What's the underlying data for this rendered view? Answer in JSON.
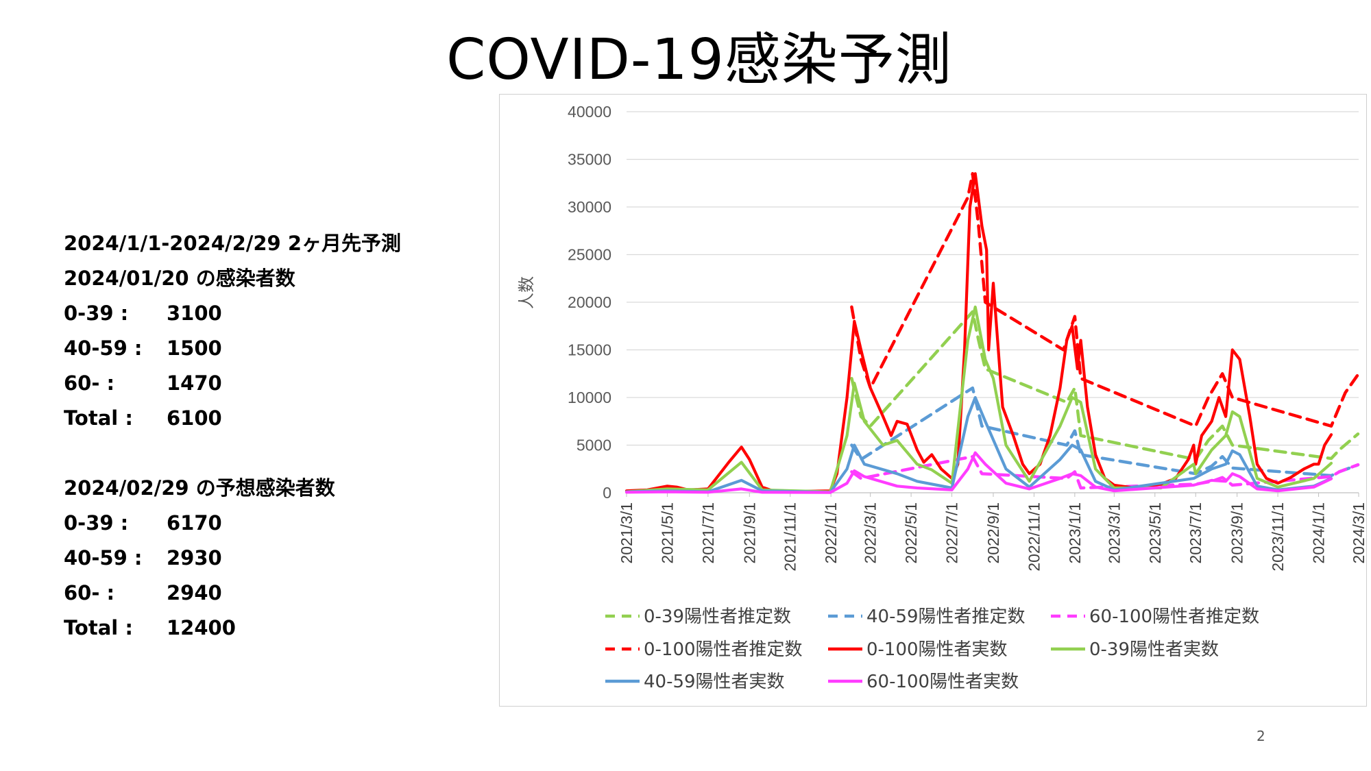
{
  "slide": {
    "title": "COVID-19感染予測",
    "page_number": "2"
  },
  "info": {
    "line1": "2024/1/1-2024/2/29 2ヶ月先予測",
    "line2": "2024/01/20 の感染者数",
    "current": [
      {
        "label": "0-39 :",
        "value": "3100"
      },
      {
        "label": "40-59 :",
        "value": "1500"
      },
      {
        "label": "60- :",
        "value": "1470"
      },
      {
        "label": "Total :",
        "value": "6100"
      }
    ],
    "line3": "2024/02/29 の予想感染者数",
    "forecast": [
      {
        "label": "0-39 :",
        "value": "6170"
      },
      {
        "label": "40-59 :",
        "value": "2930"
      },
      {
        "label": "60- :",
        "value": "2940"
      },
      {
        "label": "Total :",
        "value": "12400"
      }
    ]
  },
  "chart_data": {
    "type": "line",
    "title": "",
    "xlabel": "",
    "ylabel": "人数",
    "ylim": [
      0,
      40000
    ],
    "yticks": [
      0,
      5000,
      10000,
      15000,
      20000,
      25000,
      30000,
      35000,
      40000
    ],
    "xlim": [
      "2021/3/1",
      "2024/3/1"
    ],
    "xticks": [
      "2021/3/1",
      "2021/5/1",
      "2021/7/1",
      "2021/9/1",
      "2021/11/1",
      "2022/1/1",
      "2022/3/1",
      "2022/5/1",
      "2022/7/1",
      "2022/9/1",
      "2022/11/1",
      "2023/1/1",
      "2023/3/1",
      "2023/5/1",
      "2023/7/1",
      "2023/9/1",
      "2023/11/1",
      "2024/1/1",
      "2024/3/1"
    ],
    "grid": "horizontal",
    "legend_position": "bottom",
    "series": [
      {
        "name": "0-39陽性者推定数",
        "color": "#92D050",
        "dash": true,
        "points": [
          [
            "2022/2/1",
            12000
          ],
          [
            "2022/2/15",
            8000
          ],
          [
            "2022/3/1",
            7000
          ],
          [
            "2022/8/1",
            19000
          ],
          [
            "2022/8/10",
            16000
          ],
          [
            "2022/8/20",
            13000
          ],
          [
            "2022/12/20",
            9500
          ],
          [
            "2023/1/1",
            11000
          ],
          [
            "2023/1/10",
            6000
          ],
          [
            "2023/7/1",
            3500
          ],
          [
            "2023/7/20",
            5500
          ],
          [
            "2023/8/10",
            7000
          ],
          [
            "2023/8/25",
            5000
          ],
          [
            "2024/1/20",
            3600
          ],
          [
            "2024/2/1",
            4500
          ],
          [
            "2024/2/29",
            6170
          ]
        ]
      },
      {
        "name": "40-59陽性者推定数",
        "color": "#5B9BD5",
        "dash": true,
        "points": [
          [
            "2022/2/1",
            5000
          ],
          [
            "2022/2/15",
            3500
          ],
          [
            "2022/8/1",
            11000
          ],
          [
            "2022/8/15",
            7000
          ],
          [
            "2022/12/20",
            5000
          ],
          [
            "2023/1/1",
            6500
          ],
          [
            "2023/1/10",
            4000
          ],
          [
            "2023/7/1",
            2000
          ],
          [
            "2023/7/25",
            2800
          ],
          [
            "2023/8/10",
            3800
          ],
          [
            "2023/8/25",
            2600
          ],
          [
            "2024/1/20",
            1800
          ],
          [
            "2024/2/1",
            2200
          ],
          [
            "2024/2/29",
            2930
          ]
        ]
      },
      {
        "name": "60-100陽性者推定数",
        "color": "#FF3CFF",
        "dash": true,
        "points": [
          [
            "2022/2/1",
            2200
          ],
          [
            "2022/2/15",
            1500
          ],
          [
            "2022/8/1",
            3800
          ],
          [
            "2022/8/15",
            2000
          ],
          [
            "2022/12/20",
            1500
          ],
          [
            "2023/1/1",
            2200
          ],
          [
            "2023/1/10",
            500
          ],
          [
            "2023/7/1",
            900
          ],
          [
            "2023/7/25",
            1200
          ],
          [
            "2023/8/10",
            1600
          ],
          [
            "2023/8/25",
            800
          ],
          [
            "2024/1/20",
            1700
          ],
          [
            "2024/2/1",
            2200
          ],
          [
            "2024/2/29",
            2940
          ]
        ]
      },
      {
        "name": "0-100陽性者推定数",
        "color": "#FF0000",
        "dash": true,
        "points": [
          [
            "2022/2/1",
            19500
          ],
          [
            "2022/2/15",
            14000
          ],
          [
            "2022/3/1",
            11000
          ],
          [
            "2022/7/25",
            31000
          ],
          [
            "2022/8/1",
            33500
          ],
          [
            "2022/8/10",
            28000
          ],
          [
            "2022/8/20",
            20000
          ],
          [
            "2022/12/15",
            15000
          ],
          [
            "2023/1/1",
            18500
          ],
          [
            "2023/1/10",
            12000
          ],
          [
            "2023/7/1",
            7000
          ],
          [
            "2023/7/20",
            10000
          ],
          [
            "2023/8/10",
            12500
          ],
          [
            "2023/8/25",
            10000
          ],
          [
            "2024/1/20",
            7000
          ],
          [
            "2024/2/10",
            10500
          ],
          [
            "2024/2/29",
            12400
          ]
        ]
      },
      {
        "name": "0-100陽性者実数",
        "color": "#FF0000",
        "dash": false,
        "points": [
          [
            "2021/3/1",
            200
          ],
          [
            "2021/4/1",
            300
          ],
          [
            "2021/5/1",
            700
          ],
          [
            "2021/5/15",
            600
          ],
          [
            "2021/6/1",
            300
          ],
          [
            "2021/7/1",
            400
          ],
          [
            "2021/8/1",
            3200
          ],
          [
            "2021/8/20",
            4800
          ],
          [
            "2021/9/1",
            3500
          ],
          [
            "2021/9/20",
            600
          ],
          [
            "2021/10/10",
            100
          ],
          [
            "2021/12/31",
            200
          ],
          [
            "2022/1/10",
            2000
          ],
          [
            "2022/1/25",
            10000
          ],
          [
            "2022/2/5",
            18000
          ],
          [
            "2022/2/15",
            15000
          ],
          [
            "2022/3/1",
            11000
          ],
          [
            "2022/3/20",
            8000
          ],
          [
            "2022/4/1",
            6000
          ],
          [
            "2022/4/10",
            7500
          ],
          [
            "2022/4/25",
            7200
          ],
          [
            "2022/5/10",
            4500
          ],
          [
            "2022/5/20",
            3200
          ],
          [
            "2022/6/1",
            4000
          ],
          [
            "2022/6/15",
            2500
          ],
          [
            "2022/7/1",
            1500
          ],
          [
            "2022/7/10",
            3000
          ],
          [
            "2022/7/20",
            15000
          ],
          [
            "2022/7/28",
            30000
          ],
          [
            "2022/8/5",
            33500
          ],
          [
            "2022/8/15",
            28000
          ],
          [
            "2022/8/22",
            25500
          ],
          [
            "2022/8/25",
            15000
          ],
          [
            "2022/9/1",
            22000
          ],
          [
            "2022/9/15",
            9000
          ],
          [
            "2022/10/1",
            6000
          ],
          [
            "2022/10/15",
            3000
          ],
          [
            "2022/10/25",
            2000
          ],
          [
            "2022/11/10",
            3000
          ],
          [
            "2022/11/25",
            6000
          ],
          [
            "2022/12/10",
            11000
          ],
          [
            "2022/12/20",
            16000
          ],
          [
            "2022/12/28",
            17500
          ],
          [
            "2023/1/5",
            13000
          ],
          [
            "2023/1/10",
            16000
          ],
          [
            "2023/1/20",
            9000
          ],
          [
            "2023/2/1",
            4000
          ],
          [
            "2023/2/15",
            1500
          ],
          [
            "2023/3/1",
            800
          ],
          [
            "2023/4/1",
            500
          ],
          [
            "2023/5/10",
            900
          ],
          [
            "2023/6/1",
            1500
          ],
          [
            "2023/6/20",
            3500
          ],
          [
            "2023/6/28",
            5000
          ],
          [
            "2023/7/1",
            3000
          ],
          [
            "2023/7/10",
            6000
          ],
          [
            "2023/7/25",
            7500
          ],
          [
            "2023/8/5",
            10000
          ],
          [
            "2023/8/15",
            8000
          ],
          [
            "2023/8/25",
            15000
          ],
          [
            "2023/9/5",
            14000
          ],
          [
            "2023/9/20",
            8000
          ],
          [
            "2023/10/1",
            3000
          ],
          [
            "2023/10/15",
            1500
          ],
          [
            "2023/11/1",
            1000
          ],
          [
            "2023/11/20",
            1600
          ],
          [
            "2023/12/10",
            2500
          ],
          [
            "2023/12/25",
            3000
          ],
          [
            "2024/1/1",
            3000
          ],
          [
            "2024/1/10",
            5000
          ],
          [
            "2024/1/20",
            6100
          ]
        ]
      },
      {
        "name": "0-39陽性者実数",
        "color": "#92D050",
        "dash": false,
        "points": [
          [
            "2021/3/1",
            100
          ],
          [
            "2021/5/1",
            400
          ],
          [
            "2021/7/1",
            300
          ],
          [
            "2021/8/20",
            3200
          ],
          [
            "2021/9/20",
            300
          ],
          [
            "2021/12/31",
            100
          ],
          [
            "2022/1/25",
            6000
          ],
          [
            "2022/2/5",
            11500
          ],
          [
            "2022/2/20",
            7500
          ],
          [
            "2022/3/20",
            5000
          ],
          [
            "2022/4/10",
            5500
          ],
          [
            "2022/5/10",
            3000
          ],
          [
            "2022/6/1",
            2400
          ],
          [
            "2022/7/1",
            1000
          ],
          [
            "2022/7/25",
            16000
          ],
          [
            "2022/8/5",
            19500
          ],
          [
            "2022/8/20",
            14000
          ],
          [
            "2022/9/1",
            12000
          ],
          [
            "2022/9/20",
            5000
          ],
          [
            "2022/10/25",
            1200
          ],
          [
            "2022/12/10",
            7000
          ],
          [
            "2022/12/28",
            10000
          ],
          [
            "2023/1/10",
            9500
          ],
          [
            "2023/2/1",
            2500
          ],
          [
            "2023/3/1",
            500
          ],
          [
            "2023/5/10",
            500
          ],
          [
            "2023/6/28",
            3000
          ],
          [
            "2023/7/1",
            2000
          ],
          [
            "2023/7/25",
            4500
          ],
          [
            "2023/8/15",
            6000
          ],
          [
            "2023/8/25",
            8500
          ],
          [
            "2023/9/5",
            8000
          ],
          [
            "2023/10/1",
            1500
          ],
          [
            "2023/11/1",
            600
          ],
          [
            "2023/12/25",
            1500
          ],
          [
            "2024/1/20",
            3100
          ]
        ]
      },
      {
        "name": "40-59陽性者実数",
        "color": "#5B9BD5",
        "dash": false,
        "points": [
          [
            "2021/3/1",
            100
          ],
          [
            "2021/5/1",
            200
          ],
          [
            "2021/7/1",
            100
          ],
          [
            "2021/8/20",
            1300
          ],
          [
            "2021/9/20",
            200
          ],
          [
            "2021/12/31",
            50
          ],
          [
            "2022/1/25",
            2500
          ],
          [
            "2022/2/5",
            5000
          ],
          [
            "2022/2/20",
            3000
          ],
          [
            "2022/4/10",
            2000
          ],
          [
            "2022/5/10",
            1200
          ],
          [
            "2022/7/1",
            500
          ],
          [
            "2022/7/25",
            8000
          ],
          [
            "2022/8/5",
            10000
          ],
          [
            "2022/8/20",
            7500
          ],
          [
            "2022/9/20",
            2500
          ],
          [
            "2022/10/25",
            600
          ],
          [
            "2022/12/10",
            3500
          ],
          [
            "2022/12/28",
            5000
          ],
          [
            "2023/1/10",
            4500
          ],
          [
            "2023/2/1",
            1200
          ],
          [
            "2023/3/1",
            300
          ],
          [
            "2023/6/28",
            1500
          ],
          [
            "2023/7/25",
            2500
          ],
          [
            "2023/8/15",
            3000
          ],
          [
            "2023/8/25",
            4400
          ],
          [
            "2023/9/5",
            4000
          ],
          [
            "2023/10/1",
            700
          ],
          [
            "2023/11/1",
            300
          ],
          [
            "2023/12/25",
            700
          ],
          [
            "2024/1/20",
            1500
          ]
        ]
      },
      {
        "name": "60-100陽性者実数",
        "color": "#FF3CFF",
        "dash": false,
        "points": [
          [
            "2021/3/1",
            50
          ],
          [
            "2021/5/1",
            100
          ],
          [
            "2021/7/1",
            50
          ],
          [
            "2021/8/20",
            400
          ],
          [
            "2021/9/20",
            50
          ],
          [
            "2021/12/31",
            30
          ],
          [
            "2022/1/25",
            1000
          ],
          [
            "2022/2/5",
            2300
          ],
          [
            "2022/2/20",
            1700
          ],
          [
            "2022/4/10",
            700
          ],
          [
            "2022/5/10",
            500
          ],
          [
            "2022/7/1",
            300
          ],
          [
            "2022/7/25",
            2500
          ],
          [
            "2022/8/5",
            4200
          ],
          [
            "2022/8/20",
            3000
          ],
          [
            "2022/9/20",
            1000
          ],
          [
            "2022/10/25",
            400
          ],
          [
            "2022/12/10",
            1500
          ],
          [
            "2022/12/28",
            2000
          ],
          [
            "2023/1/10",
            1800
          ],
          [
            "2023/2/1",
            600
          ],
          [
            "2023/3/1",
            200
          ],
          [
            "2023/6/28",
            800
          ],
          [
            "2023/7/25",
            1300
          ],
          [
            "2023/8/15",
            1200
          ],
          [
            "2023/8/25",
            2000
          ],
          [
            "2023/9/5",
            1700
          ],
          [
            "2023/10/1",
            400
          ],
          [
            "2023/11/1",
            200
          ],
          [
            "2023/12/25",
            600
          ],
          [
            "2024/1/20",
            1470
          ]
        ]
      }
    ],
    "legend_order": [
      "0-39陽性者推定数",
      "40-59陽性者推定数",
      "60-100陽性者推定数",
      "0-100陽性者推定数",
      "0-100陽性者実数",
      "0-39陽性者実数",
      "40-59陽性者実数",
      "60-100陽性者実数"
    ]
  }
}
